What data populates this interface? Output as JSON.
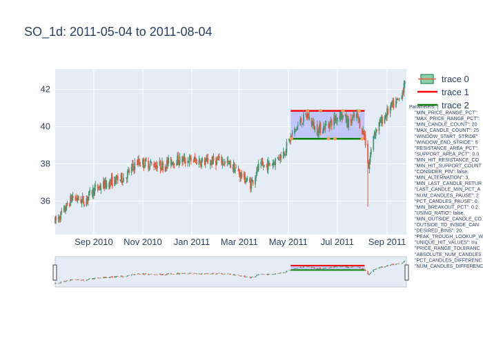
{
  "chart_data": {
    "type": "candlestick",
    "title": "SO_1d: 2011-05-04 to 2011-08-04",
    "x_range": [
      "2010-07-15",
      "2011-09-25"
    ],
    "y_range": [
      34.2,
      43.1
    ],
    "x_ticks": [
      {
        "label": "Sep 2010",
        "date": "2010-09-01"
      },
      {
        "label": "Nov 2010",
        "date": "2010-11-01"
      },
      {
        "label": "Jan 2011",
        "date": "2011-01-01"
      },
      {
        "label": "Mar 2011",
        "date": "2011-03-01"
      },
      {
        "label": "May 2011",
        "date": "2011-05-01"
      },
      {
        "label": "Jul 2011",
        "date": "2011-07-01"
      },
      {
        "label": "Sep 2011",
        "date": "2011-09-01"
      }
    ],
    "y_ticks": [
      36,
      38,
      40,
      42
    ],
    "increasing_color": "#3d9970",
    "decreasing_color": "#ef553b",
    "price_path": [
      {
        "date": "2010-07-15",
        "close": 34.9
      },
      {
        "date": "2010-07-25",
        "close": 35.4
      },
      {
        "date": "2010-08-05",
        "close": 36.2
      },
      {
        "date": "2010-08-20",
        "close": 36.0
      },
      {
        "date": "2010-09-01",
        "close": 36.6
      },
      {
        "date": "2010-09-20",
        "close": 37.0
      },
      {
        "date": "2010-10-10",
        "close": 37.3
      },
      {
        "date": "2010-10-25",
        "close": 38.1
      },
      {
        "date": "2010-11-10",
        "close": 38.0
      },
      {
        "date": "2010-11-25",
        "close": 37.9
      },
      {
        "date": "2010-12-10",
        "close": 38.2
      },
      {
        "date": "2011-01-01",
        "close": 38.2
      },
      {
        "date": "2011-01-20",
        "close": 38.1
      },
      {
        "date": "2011-02-05",
        "close": 38.2
      },
      {
        "date": "2011-02-20",
        "close": 37.9
      },
      {
        "date": "2011-03-01",
        "close": 37.5
      },
      {
        "date": "2011-03-15",
        "close": 36.9
      },
      {
        "date": "2011-03-25",
        "close": 37.8
      },
      {
        "date": "2011-04-10",
        "close": 38.0
      },
      {
        "date": "2011-04-25",
        "close": 38.6
      },
      {
        "date": "2011-05-04",
        "close": 39.4
      },
      {
        "date": "2011-05-15",
        "close": 40.2
      },
      {
        "date": "2011-05-25",
        "close": 40.6
      },
      {
        "date": "2011-06-05",
        "close": 39.8
      },
      {
        "date": "2011-06-15",
        "close": 40.0
      },
      {
        "date": "2011-06-25",
        "close": 40.3
      },
      {
        "date": "2011-07-05",
        "close": 40.7
      },
      {
        "date": "2011-07-15",
        "close": 40.2
      },
      {
        "date": "2011-07-25",
        "close": 40.6
      },
      {
        "date": "2011-08-04",
        "close": 39.5
      },
      {
        "date": "2011-08-09",
        "close": 37.8
      },
      {
        "date": "2011-08-15",
        "close": 39.6
      },
      {
        "date": "2011-08-25",
        "close": 40.3
      },
      {
        "date": "2011-09-05",
        "close": 41.0
      },
      {
        "date": "2011-09-15",
        "close": 41.4
      },
      {
        "date": "2011-09-25",
        "close": 42.4
      }
    ],
    "spike_low": {
      "date": "2011-08-08",
      "low": 35.7
    },
    "shapes": {
      "rectangle": {
        "x0": "2011-05-04",
        "x1": "2011-08-04",
        "y0": 39.35,
        "y1": 40.85,
        "fill": "rgba(110,110,255,0.3)"
      },
      "resistance_line": {
        "x0": "2011-05-04",
        "x1": "2011-08-04",
        "y": 40.85,
        "color": "#ff0000",
        "name": "trace 1"
      },
      "support_line": {
        "x0": "2011-05-04",
        "x1": "2011-08-04",
        "y": 39.35,
        "color": "#008000",
        "name": "trace 2"
      },
      "resistance_hits": [
        "2011-05-25",
        "2011-06-10",
        "2011-07-08",
        "2011-07-28"
      ],
      "support_hits": [
        "2011-05-05",
        "2011-06-20",
        "2011-06-28",
        "2011-08-01"
      ]
    },
    "legend": {
      "placement": "top-right",
      "items": [
        {
          "name": "trace 0",
          "kind": "candle"
        },
        {
          "name": "trace 1",
          "kind": "line",
          "color": "#ff0000"
        },
        {
          "name": "trace 2",
          "kind": "line",
          "color": "#008000"
        }
      ]
    },
    "annotation_lines": [
      "Parameters: {",
      "\"MIN_PRICE_RANGE_PCT\":",
      "\"MAX_PRICE_RANGE_PCT\":",
      "\"MIN_CANDLE_COUNT\": 20",
      "\"MAX_CANDLE_COUNT\": 25",
      "\"WINDOW_START_STRIDE\"",
      "\"WINDOW_END_STRIDE\": 5",
      "\"RESISTANCE_AREA_PCT\":",
      "\"SUPPORT_AREA_PCT\": 0.0",
      "\"MIN_HIT_RESISTANCE_CO",
      "\"MIN_HIT_SUPPORT_COUNT",
      "\"CONSIDER_PIN\": false,",
      "\"MIN_ALTERNATION\": 3,",
      "\"MIN_LAST_CANDLE_RETUR",
      "\"LAST_CANDLE_MIN_PCT_A",
      "\"NUM_CANDLES_PAUSE\": 2",
      "\"PCT_CANDLES_PAUSE\": 0.",
      "\"MIN_BREAKOUT_PCT\": 0.2",
      "\"USING_RATIO\": false,",
      "\"MIN_OUTSIDE_CANDLE_CO",
      "\"OUTSIDE_TO_INSIDE_CAN",
      "\"DESIRED_BINS\": 20,",
      "\"PEAK_TROUGH_LOOKUP_W",
      "\"UNIQUE_HIT_VALUES\": tru",
      "\"PRICE_RANGE_TOLERANC",
      "\"ABSOLUTE_NUM_CANDLES",
      "\"PCT_CANDLES_DIFFERENC",
      "\"NUM_CANDLES_DIFFERENC"
    ]
  }
}
